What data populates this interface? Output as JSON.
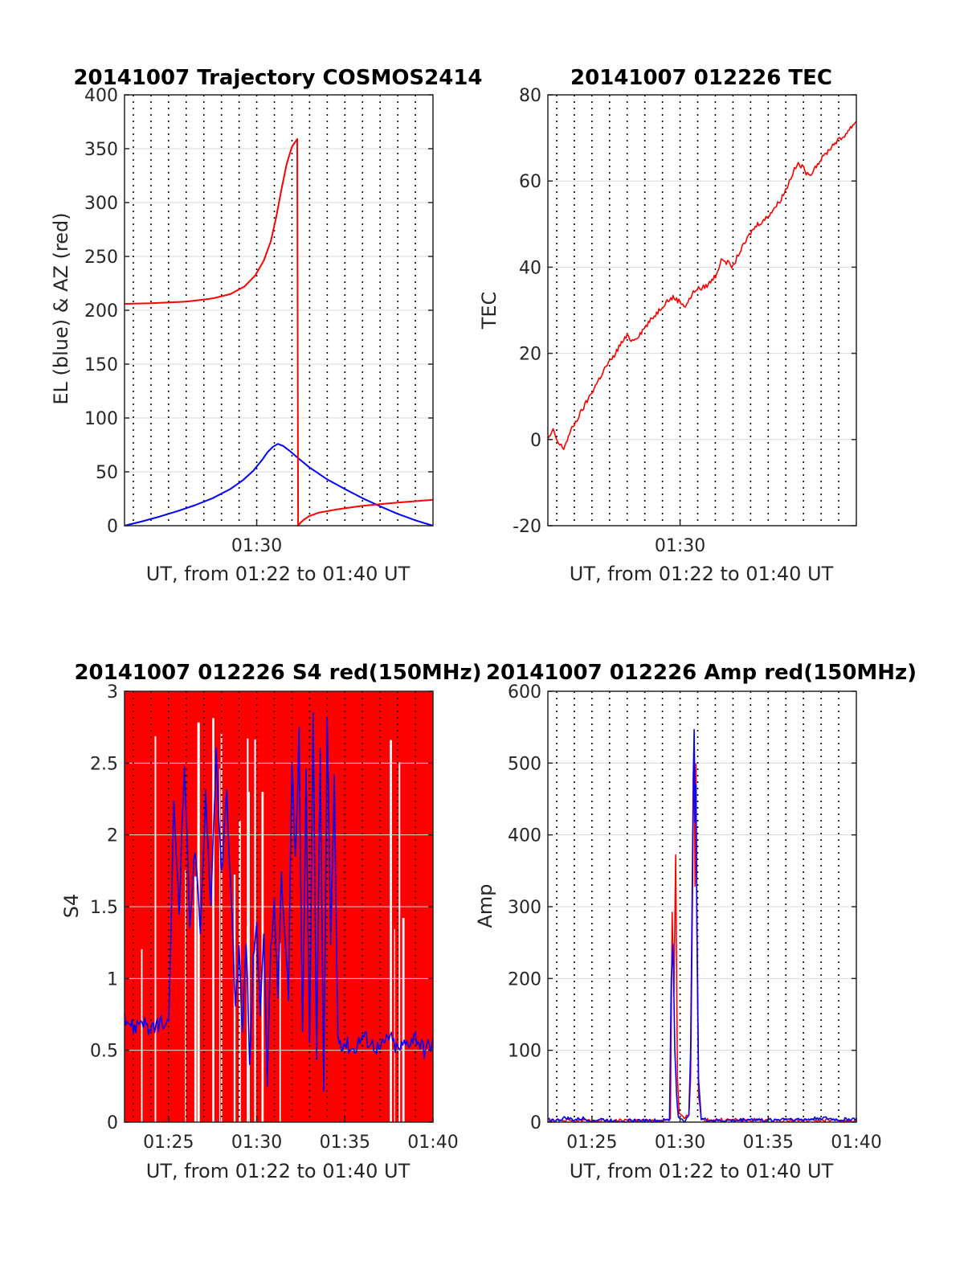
{
  "colors": {
    "el": "#0000ff",
    "az": "#ff0000",
    "tec": "#ff0000",
    "red": "#ff0000",
    "blue": "#0000ff",
    "grid": "#d9d9d9",
    "axis": "#262626"
  },
  "chart_data": [
    {
      "id": "trajectory",
      "type": "line",
      "title": "20141007 Trajectory COSMOS2414",
      "xlabel": "UT, from 01:22 to 01:40 UT",
      "ylabel": "EL (blue) & AZ (red)",
      "xlim": [
        22.5,
        40
      ],
      "ylim": [
        0,
        400
      ],
      "yticks": [
        0,
        50,
        100,
        150,
        200,
        250,
        300,
        350,
        400
      ],
      "xticks": [
        {
          "x": 30,
          "label": "01:30"
        }
      ],
      "grid": true,
      "series": [
        {
          "color": "#0000ff",
          "x": [
            22.5,
            23.5,
            24.5,
            25.5,
            26.5,
            27.5,
            28.5,
            29.2,
            29.8,
            30.3,
            30.6,
            30.9,
            31.2,
            31.5,
            31.9,
            32.4,
            33,
            34,
            35,
            36,
            37,
            38,
            39,
            40
          ],
          "y": [
            0,
            4,
            8.5,
            13.5,
            19,
            25.5,
            34,
            42,
            51,
            61,
            68,
            73,
            76,
            74,
            69,
            62,
            54,
            43,
            34,
            25.5,
            18,
            11,
            5,
            0
          ]
        },
        {
          "color": "#ff0000",
          "x": [
            22.5,
            24,
            26,
            27.5,
            28.5,
            29.3,
            29.9,
            30.4,
            30.8,
            31.1,
            31.4,
            31.7,
            32,
            32.3,
            32.35,
            32.5,
            32.7,
            33,
            33.5,
            34.5,
            36,
            38,
            40
          ],
          "y": [
            206,
            206.5,
            208,
            211,
            215,
            222,
            232,
            246,
            264,
            286,
            312,
            336,
            352,
            359,
            0,
            3,
            6,
            9,
            12,
            15,
            18.5,
            21.5,
            24
          ]
        }
      ]
    },
    {
      "id": "tec",
      "type": "line",
      "title": "20141007 012226 TEC",
      "xlabel": "UT, from 01:22 to 01:40 UT",
      "ylabel": "TEC",
      "xlim": [
        22.5,
        40
      ],
      "ylim": [
        -20,
        80
      ],
      "yticks": [
        -20,
        0,
        20,
        40,
        60,
        80
      ],
      "xticks": [
        {
          "x": 30,
          "label": "01:30"
        }
      ],
      "grid": true,
      "series": [
        {
          "color": "#ff0000",
          "x": [
            22.5,
            22.8,
            23.1,
            23.4,
            23.8,
            24.2,
            24.6,
            25,
            25.4,
            25.8,
            26.2,
            26.6,
            27,
            27.3,
            27.6,
            28,
            28.4,
            28.8,
            29.2,
            29.6,
            30,
            30.3,
            30.6,
            30.9,
            31.2,
            31.6,
            32,
            32.4,
            32.7,
            33,
            33.3,
            33.6,
            34,
            34.4,
            34.8,
            35.2,
            35.6,
            36,
            36.4,
            36.7,
            37,
            37.3,
            37.6,
            38,
            38.4,
            38.8,
            39.2,
            39.6,
            40
          ],
          "y": [
            0,
            2,
            -1,
            -2,
            2,
            5,
            8,
            11,
            14,
            17,
            19,
            22,
            24,
            23,
            24,
            26,
            28,
            30,
            32,
            33,
            32,
            31,
            33,
            35,
            35,
            36,
            38,
            42,
            41,
            40,
            43,
            45,
            48,
            50,
            51,
            53,
            55,
            58,
            62,
            64,
            63,
            61,
            63,
            65,
            67,
            69,
            70,
            72,
            74
          ]
        }
      ]
    },
    {
      "id": "s4",
      "type": "line",
      "title": "20141007 012226 S4 red(150MHz)",
      "xlabel": "UT, from 01:22 to 01:40 UT",
      "ylabel": "S4",
      "xlim": [
        22.5,
        40
      ],
      "ylim": [
        0,
        3
      ],
      "yticks": [
        0,
        0.5,
        1,
        1.5,
        2,
        2.5,
        3
      ],
      "ytick_labels": [
        "0",
        "0.5",
        "1",
        "1.5",
        "2",
        "2.5",
        "3"
      ],
      "xticks": [
        {
          "x": 25,
          "label": "01:25"
        },
        {
          "x": 30,
          "label": "01:30"
        },
        {
          "x": 35,
          "label": "01:35"
        },
        {
          "x": 40,
          "label": "01:40"
        }
      ],
      "grid": true,
      "red_fill_x": [
        22.5,
        40
      ],
      "red_fill_y": [
        0,
        3
      ],
      "series": [
        {
          "color": "#0000ff",
          "x": [
            22.5,
            23,
            23.5,
            24,
            24.5,
            25,
            25.3,
            25.6,
            25.9,
            26.2,
            26.5,
            26.8,
            27.1,
            27.4,
            27.7,
            28,
            28.3,
            28.6,
            28.8,
            29,
            29.2,
            29.4,
            29.6,
            29.8,
            30,
            30.2,
            30.4,
            30.6,
            30.8,
            31,
            31.2,
            31.4,
            31.6,
            31.8,
            32,
            32.2,
            32.4,
            32.6,
            32.8,
            33,
            33.2,
            33.4,
            33.6,
            33.8,
            34,
            34.2,
            34.4,
            34.6,
            34.8,
            35,
            35.5,
            36,
            36.5,
            37,
            37.5,
            38,
            38.5,
            39,
            39.5,
            40
          ],
          "y": [
            0.75,
            0.65,
            0.72,
            0.62,
            0.7,
            0.65,
            2.2,
            1.5,
            2.5,
            1.4,
            1.9,
            1.3,
            2.3,
            1.5,
            2.6,
            1.7,
            2.3,
            1.4,
            0.8,
            1.2,
            0.6,
            1.3,
            0.35,
            1.1,
            1.4,
            0.7,
            1.3,
            0.3,
            1.2,
            1.5,
            0.9,
            1.7,
            1.3,
            0.9,
            2.5,
            1.8,
            2.7,
            0.6,
            2.4,
            0.5,
            2.9,
            0.4,
            2.6,
            0.2,
            2.8,
            1.2,
            2.4,
            0.6,
            0.55,
            0.55,
            0.5,
            0.6,
            0.55,
            0.5,
            0.6,
            0.5,
            0.55,
            0.6,
            0.5,
            0.55
          ]
        }
      ]
    },
    {
      "id": "amp",
      "type": "line",
      "title": "20141007 012226 Amp red(150MHz)",
      "xlabel": "UT, from 01:22 to 01:40 UT",
      "ylabel": "Amp",
      "xlim": [
        22.5,
        40
      ],
      "ylim": [
        0,
        600
      ],
      "yticks": [
        0,
        100,
        200,
        300,
        400,
        500,
        600
      ],
      "xticks": [
        {
          "x": 25,
          "label": "01:25"
        },
        {
          "x": 30,
          "label": "01:30"
        },
        {
          "x": 35,
          "label": "01:35"
        },
        {
          "x": 40,
          "label": "01:40"
        }
      ],
      "grid": true,
      "series": [
        {
          "color": "#ff0000",
          "x": [
            22.5,
            29.3,
            29.45,
            29.55,
            29.65,
            29.75,
            29.85,
            29.95,
            30.1,
            30.3,
            30.5,
            30.6,
            30.7,
            30.75,
            30.8,
            30.85,
            30.9,
            30.95,
            31.05,
            31.2,
            40
          ],
          "y": [
            2,
            2,
            5,
            290,
            180,
            370,
            60,
            10,
            8,
            5,
            12,
            60,
            300,
            440,
            520,
            330,
            500,
            280,
            40,
            3,
            2
          ]
        },
        {
          "color": "#0000ff",
          "x": [
            22.5,
            23,
            23.5,
            24,
            24.5,
            25,
            25.5,
            26,
            27,
            28,
            29,
            29.4,
            29.5,
            29.6,
            29.7,
            29.8,
            29.9,
            30.1,
            30.3,
            30.5,
            30.6,
            30.7,
            30.75,
            30.8,
            30.85,
            30.9,
            30.95,
            31.05,
            31.2,
            32,
            33,
            34,
            35,
            36,
            37,
            38,
            39,
            40
          ],
          "y": [
            4,
            2,
            6,
            3,
            5,
            2,
            4,
            2,
            2,
            2,
            2,
            3,
            200,
            250,
            100,
            40,
            5,
            3,
            2,
            10,
            100,
            350,
            480,
            545,
            420,
            470,
            300,
            60,
            4,
            2,
            2,
            4,
            2,
            5,
            3,
            6,
            3,
            5
          ]
        }
      ]
    }
  ]
}
